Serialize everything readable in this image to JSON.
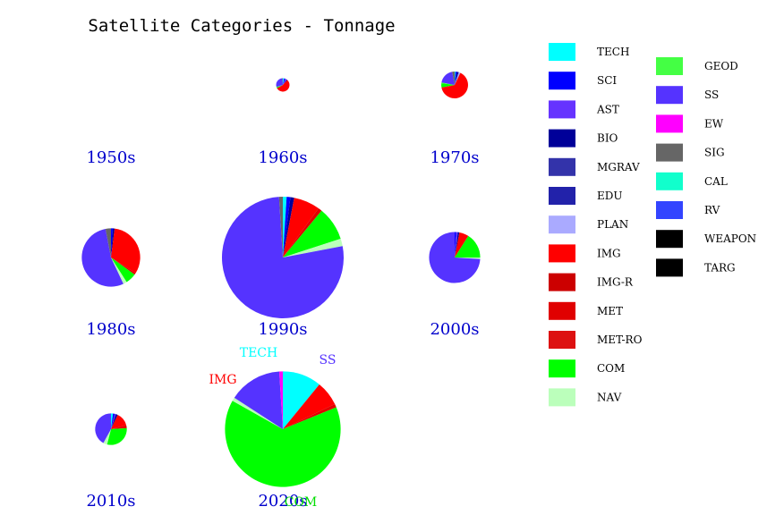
{
  "chart_data": {
    "type": "pie",
    "title": "Satellite Categories - Tonnage",
    "categories": [
      "TECH",
      "SCI",
      "AST",
      "BIO",
      "MGRAV",
      "EDU",
      "PLAN",
      "IMG",
      "IMG-R",
      "MET",
      "MET-RO",
      "COM",
      "NAV",
      "GEOD",
      "SS",
      "EW",
      "SIG",
      "CAL",
      "RV",
      "WEAPON",
      "TARG"
    ],
    "colors": [
      "#00ffff",
      "#0000ff",
      "#6633ff",
      "#000099",
      "#3333aa",
      "#2222aa",
      "#aaaaff",
      "#ff0000",
      "#cc0000",
      "#e00000",
      "#dd1111",
      "#00ff00",
      "#bbffbb",
      "#44ff44",
      "#5533ff",
      "#ff00ff",
      "#666666",
      "#11ffcc",
      "#3344ff",
      "#000000",
      "#000000"
    ],
    "decades": [
      {
        "label": "1950s",
        "relative_size": 0.0,
        "values": {}
      },
      {
        "label": "1960s",
        "relative_size": 0.11,
        "values": {
          "IMG": 52,
          "MET": 3,
          "COM": 2,
          "SS": 29,
          "GEOD": 1,
          "TECH": 3,
          "SCI": 3,
          "BIO": 2,
          "SIG": 1,
          "AST": 4
        }
      },
      {
        "label": "1970s",
        "relative_size": 0.22,
        "values": {
          "IMG": 64,
          "COM": 5,
          "GEOD": 1,
          "SS": 19,
          "SIG": 3,
          "TECH": 1,
          "SCI": 2,
          "BIO": 2,
          "PLAN": 2,
          "MET": 1
        }
      },
      {
        "label": "1980s",
        "relative_size": 0.48,
        "values": {
          "SS": 54,
          "NAV": 2,
          "COM": 6,
          "IMG": 32,
          "MET": 1,
          "SCI": 1,
          "BIO": 1,
          "SIG": 3
        }
      },
      {
        "label": "1990s",
        "relative_size": 1.0,
        "values": {
          "SS": 77,
          "NAV": 2,
          "COM": 9,
          "IMG": 7,
          "MET": 1,
          "SCI": 1,
          "BIO": 1,
          "TECH": 1,
          "SIG": 1
        }
      },
      {
        "label": "2000s",
        "relative_size": 0.42,
        "values": {
          "SS": 74,
          "NAV": 1,
          "COM": 16,
          "IMG": 6,
          "SCI": 1,
          "BIO": 1,
          "AST": 1
        }
      },
      {
        "label": "2010s",
        "relative_size": 0.26,
        "values": {
          "SS": 42,
          "NAV": 4,
          "COM": 30,
          "IMG": 14,
          "MET": 3,
          "SCI": 2,
          "TECH": 2,
          "BIO": 2,
          "AST": 1
        }
      },
      {
        "label": "2020s",
        "relative_size": 0.95,
        "values": {
          "SS": 15,
          "COM": 65,
          "IMG": 7,
          "MET": 1,
          "TECH": 11,
          "EW": 1,
          "NAV": 1
        }
      }
    ],
    "annotations": [
      {
        "decade": "2020s",
        "text": "TECH",
        "color": "#00ffff"
      },
      {
        "decade": "2020s",
        "text": "SS",
        "color": "#5533ff"
      },
      {
        "decade": "2020s",
        "text": "IMG",
        "color": "#ff0000"
      },
      {
        "decade": "2020s",
        "text": "COM",
        "color": "#00dd00"
      }
    ],
    "legend_placement": "right",
    "grid": false
  }
}
